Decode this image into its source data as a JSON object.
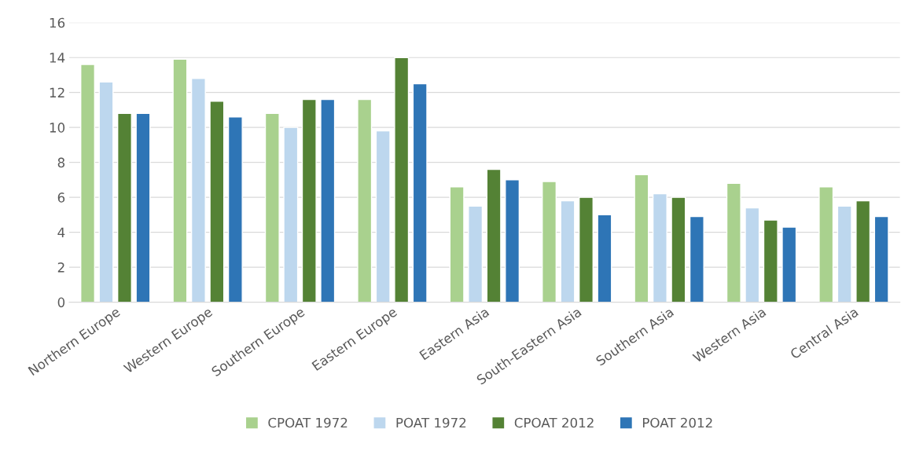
{
  "chart_data": {
    "type": "bar",
    "categories": [
      "Northern Europe",
      "Western Europe",
      "Southern Europe",
      "Eastern Europe",
      "Eastern Asia",
      "South-Eastern Asia",
      "Southern Asia",
      "Western Asia",
      "Central Asia"
    ],
    "series": [
      {
        "name": "CPOAT 1972",
        "color": "#a9d18e",
        "values": [
          13.6,
          13.9,
          10.8,
          11.6,
          6.6,
          6.9,
          7.3,
          6.8,
          6.6
        ]
      },
      {
        "name": "POAT 1972",
        "color": "#bdd7ee",
        "values": [
          12.6,
          12.8,
          10.0,
          9.8,
          5.5,
          5.8,
          6.2,
          5.4,
          5.5
        ]
      },
      {
        "name": "CPOAT 2012",
        "color": "#548235",
        "values": [
          10.8,
          11.5,
          11.6,
          14.0,
          7.6,
          6.0,
          6.0,
          4.7,
          5.8
        ]
      },
      {
        "name": "POAT 2012",
        "color": "#2e75b6",
        "values": [
          10.8,
          10.6,
          11.6,
          12.5,
          7.0,
          5.0,
          4.9,
          4.3,
          4.9
        ]
      }
    ],
    "ylim": [
      0,
      16
    ],
    "yticks": [
      0,
      2,
      4,
      6,
      8,
      10,
      12,
      14,
      16
    ],
    "grid": "y",
    "legend": "bottom"
  }
}
